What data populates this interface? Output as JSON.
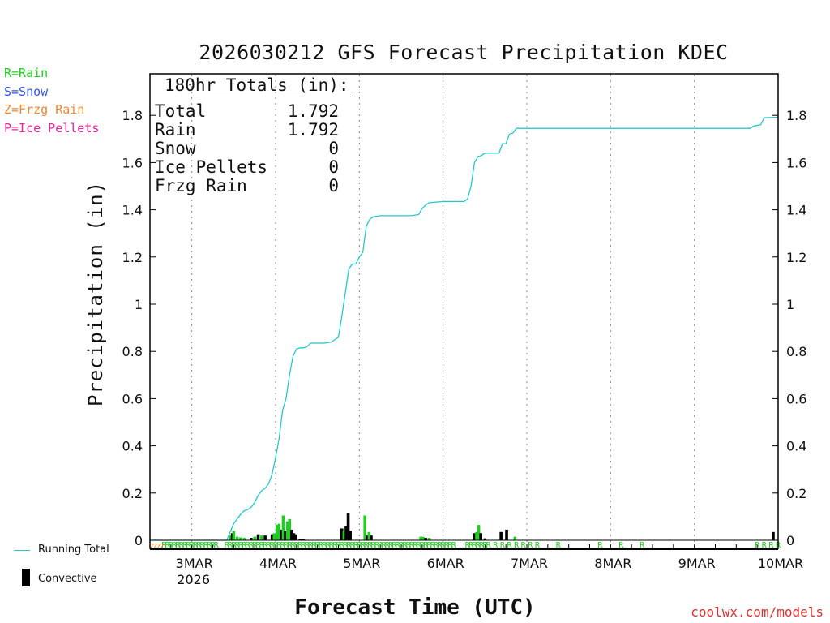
{
  "title": "2026030212 GFS Forecast Precipitation KDEC",
  "legend_types": [
    {
      "label": "R=Rain",
      "color": "#22cc22"
    },
    {
      "label": "S=Snow",
      "color": "#3355ee"
    },
    {
      "label": "Z=Frzg Rain",
      "color": "#ee8833"
    },
    {
      "label": "P=Ice Pellets",
      "color": "#ee2299"
    }
  ],
  "totals": {
    "heading": "180hr Totals (in):",
    "rows": [
      {
        "label": "Total",
        "value": "1.792"
      },
      {
        "label": "Rain",
        "value": "1.792"
      },
      {
        "label": "Snow",
        "value": "0"
      },
      {
        "label": "Ice Pellets",
        "value": "0"
      },
      {
        "label": "Frzg Rain",
        "value": "0"
      }
    ]
  },
  "series_legend": {
    "running_total": "Running Total",
    "convective": "Convective"
  },
  "colors": {
    "running_total": "#28c8c8",
    "rain": "#22cc22",
    "convective": "#000000",
    "frzg": "#ee8833"
  },
  "credit": "coolwx.com/models",
  "chart_data": {
    "type": "bar",
    "title": "2026030212 GFS Forecast Precipitation KDEC",
    "xlabel": "Forecast Time (UTC)",
    "ylabel": "Precipitation (in)",
    "ylim": [
      0,
      2.0
    ],
    "yticks": [
      0,
      0.2,
      0.4,
      0.6,
      0.8,
      1,
      1.2,
      1.4,
      1.6,
      1.8
    ],
    "ytick_labels": [
      "0",
      "0.2",
      "0.4",
      "0.6",
      "0.8",
      "1",
      "1.2",
      "1.4",
      "1.6",
      "1.8"
    ],
    "xlim_hours": [
      0,
      180
    ],
    "xticks": [
      {
        "hour": 12,
        "label": "3MAR",
        "sublabel": "2026"
      },
      {
        "hour": 36,
        "label": "4MAR"
      },
      {
        "hour": 60,
        "label": "5MAR"
      },
      {
        "hour": 84,
        "label": "6MAR"
      },
      {
        "hour": 108,
        "label": "7MAR"
      },
      {
        "hour": 132,
        "label": "8MAR"
      },
      {
        "hour": 156,
        "label": "9MAR"
      },
      {
        "hour": 180,
        "label": "10MAR"
      }
    ],
    "running_total": [
      [
        0,
        0
      ],
      [
        22,
        0
      ],
      [
        24,
        0.07
      ],
      [
        25,
        0.09
      ],
      [
        26,
        0.11
      ],
      [
        27,
        0.125
      ],
      [
        28,
        0.13
      ],
      [
        29,
        0.14
      ],
      [
        30,
        0.16
      ],
      [
        31,
        0.19
      ],
      [
        32,
        0.21
      ],
      [
        33,
        0.22
      ],
      [
        34,
        0.24
      ],
      [
        35,
        0.28
      ],
      [
        36,
        0.35
      ],
      [
        37,
        0.43
      ],
      [
        38,
        0.55
      ],
      [
        39,
        0.6
      ],
      [
        40,
        0.7
      ],
      [
        41,
        0.78
      ],
      [
        42,
        0.81
      ],
      [
        43,
        0.815
      ],
      [
        44,
        0.815
      ],
      [
        45,
        0.82
      ],
      [
        46,
        0.835
      ],
      [
        48,
        0.835
      ],
      [
        50,
        0.835
      ],
      [
        52,
        0.84
      ],
      [
        53,
        0.85
      ],
      [
        54,
        0.86
      ],
      [
        55,
        0.95
      ],
      [
        56,
        1.05
      ],
      [
        57,
        1.15
      ],
      [
        58,
        1.17
      ],
      [
        59,
        1.17
      ],
      [
        60,
        1.2
      ],
      [
        61,
        1.22
      ],
      [
        62,
        1.33
      ],
      [
        63,
        1.36
      ],
      [
        64,
        1.37
      ],
      [
        66,
        1.375
      ],
      [
        70,
        1.375
      ],
      [
        75,
        1.375
      ],
      [
        77,
        1.38
      ],
      [
        78,
        1.405
      ],
      [
        79,
        1.42
      ],
      [
        80,
        1.43
      ],
      [
        84,
        1.435
      ],
      [
        90,
        1.435
      ],
      [
        91,
        1.445
      ],
      [
        92,
        1.5
      ],
      [
        93,
        1.6
      ],
      [
        94,
        1.625
      ],
      [
        95,
        1.63
      ],
      [
        96,
        1.64
      ],
      [
        100,
        1.64
      ],
      [
        101,
        1.68
      ],
      [
        102,
        1.68
      ],
      [
        103,
        1.72
      ],
      [
        104,
        1.725
      ],
      [
        105,
        1.745
      ],
      [
        120,
        1.745
      ],
      [
        150,
        1.745
      ],
      [
        172,
        1.745
      ],
      [
        173,
        1.755
      ],
      [
        175,
        1.76
      ],
      [
        176,
        1.79
      ],
      [
        180,
        1.792
      ]
    ],
    "bars": [
      {
        "hour": 23,
        "value": 0.02,
        "type": "rain"
      },
      {
        "hour": 23.6,
        "value": 0.03,
        "type": "convective"
      },
      {
        "hour": 24,
        "value": 0.04,
        "type": "rain"
      },
      {
        "hour": 25,
        "value": 0.015,
        "type": "rain"
      },
      {
        "hour": 26,
        "value": 0.012,
        "type": "rain"
      },
      {
        "hour": 27,
        "value": 0.01,
        "type": "rain"
      },
      {
        "hour": 29,
        "value": 0.01,
        "type": "convective"
      },
      {
        "hour": 30,
        "value": 0.015,
        "type": "rain"
      },
      {
        "hour": 31,
        "value": 0.025,
        "type": "convective"
      },
      {
        "hour": 32,
        "value": 0.02,
        "type": "rain"
      },
      {
        "hour": 33,
        "value": 0.02,
        "type": "convective"
      },
      {
        "hour": 35,
        "value": 0.025,
        "type": "convective"
      },
      {
        "hour": 35.6,
        "value": 0.03,
        "type": "rain"
      },
      {
        "hour": 36.4,
        "value": 0.065,
        "type": "rain"
      },
      {
        "hour": 37,
        "value": 0.07,
        "type": "rain"
      },
      {
        "hour": 37.6,
        "value": 0.045,
        "type": "convective"
      },
      {
        "hour": 38.2,
        "value": 0.105,
        "type": "rain"
      },
      {
        "hour": 38.8,
        "value": 0.04,
        "type": "convective"
      },
      {
        "hour": 39.4,
        "value": 0.08,
        "type": "rain"
      },
      {
        "hour": 40,
        "value": 0.09,
        "type": "rain"
      },
      {
        "hour": 40.6,
        "value": 0.045,
        "type": "convective"
      },
      {
        "hour": 41.2,
        "value": 0.03,
        "type": "convective"
      },
      {
        "hour": 41.8,
        "value": 0.025,
        "type": "convective"
      },
      {
        "hour": 43,
        "value": 0.005,
        "type": "convective"
      },
      {
        "hour": 44,
        "value": 0.005,
        "type": "convective"
      },
      {
        "hour": 55,
        "value": 0.05,
        "type": "convective"
      },
      {
        "hour": 55.6,
        "value": 0.04,
        "type": "rain"
      },
      {
        "hour": 56.2,
        "value": 0.06,
        "type": "convective"
      },
      {
        "hour": 56.8,
        "value": 0.115,
        "type": "convective"
      },
      {
        "hour": 57.4,
        "value": 0.04,
        "type": "convective"
      },
      {
        "hour": 61.6,
        "value": 0.105,
        "type": "rain"
      },
      {
        "hour": 62.2,
        "value": 0.02,
        "type": "convective"
      },
      {
        "hour": 62.8,
        "value": 0.035,
        "type": "rain"
      },
      {
        "hour": 63.4,
        "value": 0.02,
        "type": "convective"
      },
      {
        "hour": 77.6,
        "value": 0.015,
        "type": "rain"
      },
      {
        "hour": 78.2,
        "value": 0.015,
        "type": "rain"
      },
      {
        "hour": 79,
        "value": 0.01,
        "type": "convective"
      },
      {
        "hour": 80,
        "value": 0.01,
        "type": "rain"
      },
      {
        "hour": 93,
        "value": 0.03,
        "type": "convective"
      },
      {
        "hour": 93.6,
        "value": 0.035,
        "type": "rain"
      },
      {
        "hour": 94.2,
        "value": 0.065,
        "type": "rain"
      },
      {
        "hour": 94.8,
        "value": 0.03,
        "type": "convective"
      },
      {
        "hour": 96,
        "value": 0.008,
        "type": "convective"
      },
      {
        "hour": 100.6,
        "value": 0.035,
        "type": "convective"
      },
      {
        "hour": 102.2,
        "value": 0.045,
        "type": "convective"
      },
      {
        "hour": 104.6,
        "value": 0.015,
        "type": "rain"
      },
      {
        "hour": 178.6,
        "value": 0.035,
        "type": "convective"
      }
    ],
    "ptype_markers": {
      "rain": [
        4,
        5,
        6,
        7,
        8,
        9,
        10,
        11,
        12,
        13,
        14,
        15,
        16,
        17,
        18,
        19,
        22,
        23,
        24,
        25,
        26,
        27,
        28,
        29,
        30,
        31,
        32,
        33,
        34,
        35,
        36,
        37,
        38,
        39,
        40,
        41,
        42,
        43,
        44,
        45,
        46,
        47,
        48,
        49,
        50,
        51,
        52,
        53,
        54,
        55,
        56,
        57,
        58,
        59,
        60,
        61,
        62,
        63,
        64,
        65,
        66,
        67,
        68,
        69,
        70,
        71,
        72,
        73,
        74,
        75,
        76,
        77,
        78,
        79,
        80,
        81,
        82,
        83,
        84,
        85,
        86,
        87,
        91,
        92,
        93,
        94,
        95,
        96,
        97,
        99,
        101,
        103,
        105,
        107,
        109,
        111,
        117,
        129,
        135,
        141,
        174,
        176,
        178,
        180
      ],
      "frzg": [
        0,
        1,
        2,
        3
      ]
    }
  }
}
